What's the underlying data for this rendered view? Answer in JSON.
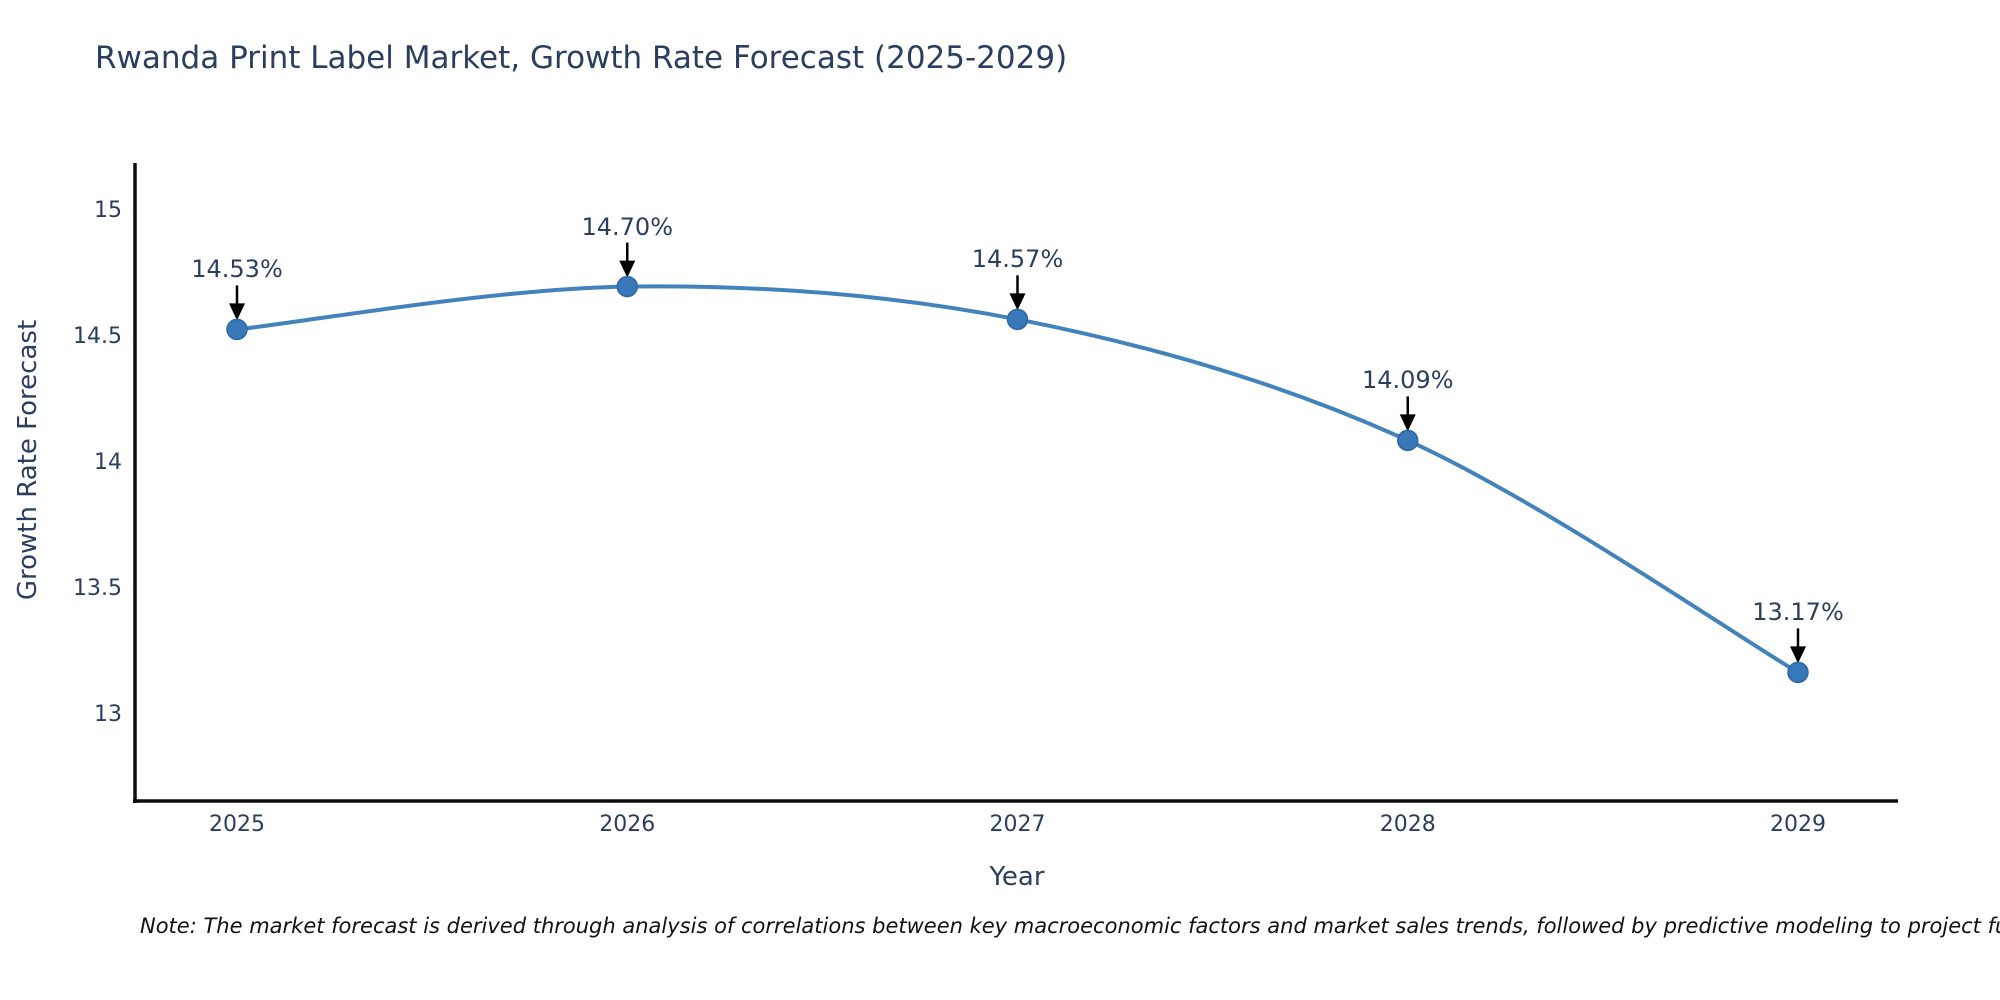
{
  "note": "Note: The market forecast is derived through analysis of correlations between key macroeconomic factors and market sales trends, followed by predictive modeling to project future sal",
  "chart_data": {
    "type": "line",
    "title": "Rwanda Print Label Market, Growth Rate Forecast (2025-2029)",
    "xlabel": "Year",
    "ylabel": "Growth Rate Forecast",
    "x": [
      "2025",
      "2026",
      "2027",
      "2028",
      "2029"
    ],
    "y": [
      14.53,
      14.7,
      14.57,
      14.09,
      13.17
    ],
    "point_labels": [
      "14.53%",
      "14.70%",
      "14.57%",
      "14.09%",
      "13.17%"
    ],
    "yticks": [
      13,
      13.5,
      14,
      14.5,
      15
    ],
    "ylim": [
      12.66,
      15.19
    ],
    "line_shape": "spline",
    "grid": false,
    "legend": false,
    "colors": {
      "line": "#4383bb",
      "marker": "#3878b8",
      "marker_edge": "#2e6aa3",
      "axis_line": "#0d0d0d",
      "annotation_arrow": "#000000",
      "text": "#2a3f5f"
    }
  }
}
